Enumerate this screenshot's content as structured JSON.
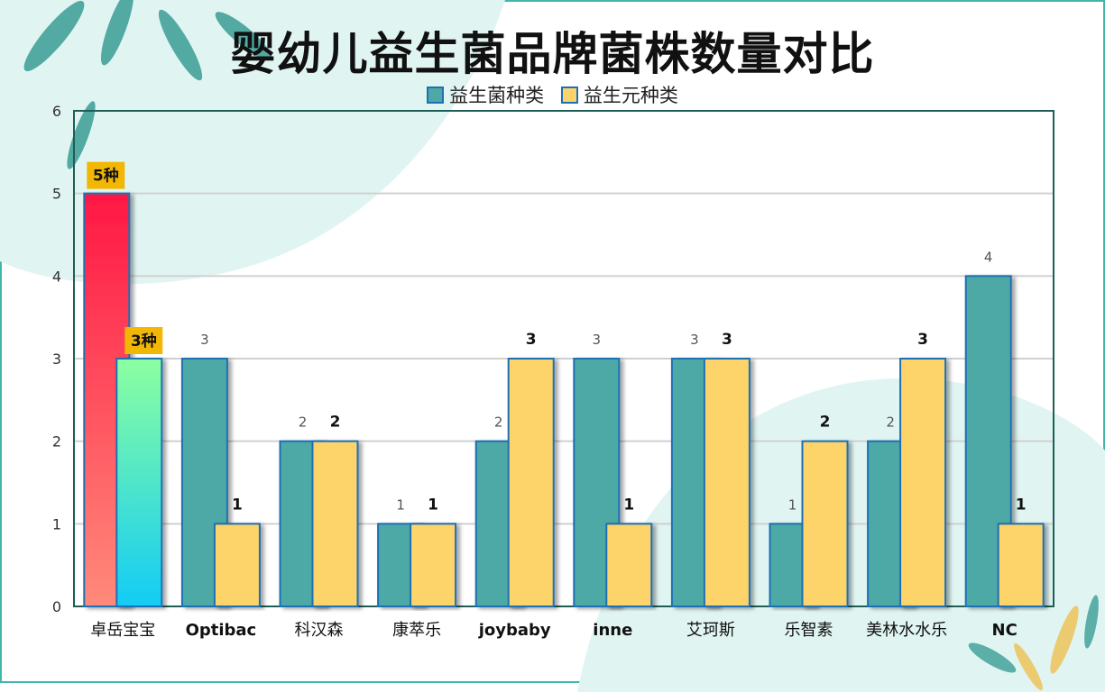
{
  "chart_data": {
    "type": "bar",
    "title": "婴幼儿益生菌品牌菌株数量对比",
    "categories": [
      "卓岳宝宝",
      "Optibac",
      "科汉森",
      "康萃乐",
      "joybaby",
      "inne",
      "艾珂斯",
      "乐智素",
      "美林水水乐",
      "NC"
    ],
    "series": [
      {
        "name": "益生菌种类",
        "color": "#4ea9a6",
        "values": [
          5,
          3,
          2,
          1,
          2,
          3,
          3,
          1,
          2,
          4
        ]
      },
      {
        "name": "益生元种类",
        "color": "#fdd46b",
        "values": [
          3,
          1,
          2,
          1,
          3,
          1,
          3,
          2,
          3,
          1
        ]
      }
    ],
    "highlight_labels": [
      "5种",
      "3种"
    ],
    "yticks": [
      "0",
      "1",
      "2",
      "3",
      "4",
      "5",
      "6"
    ],
    "ylim": [
      0,
      6
    ],
    "grid": true,
    "legend": "top"
  }
}
